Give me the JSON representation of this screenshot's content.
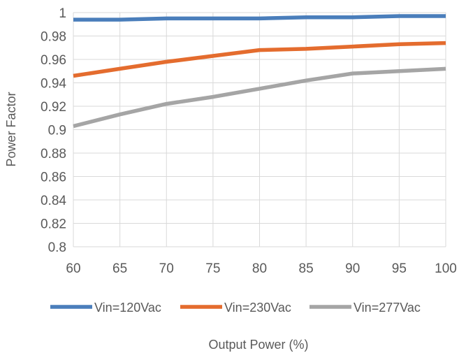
{
  "chart_data": {
    "type": "line",
    "xlabel": "Output Power (%)",
    "ylabel": "Power Factor",
    "x": [
      60,
      65,
      70,
      75,
      80,
      85,
      90,
      95,
      100
    ],
    "xlim": [
      60,
      100
    ],
    "ylim": [
      0.8,
      1.0
    ],
    "x_ticks": [
      "60",
      "65",
      "70",
      "75",
      "80",
      "85",
      "90",
      "95",
      "100"
    ],
    "y_ticks": [
      "0.8",
      "0.82",
      "0.84",
      "0.86",
      "0.88",
      "0.9",
      "0.92",
      "0.94",
      "0.96",
      "0.98",
      "1"
    ],
    "grid": true,
    "legend_position": "bottom",
    "series": [
      {
        "name": "Vin=120Vac",
        "color": "#4a7ebb",
        "values": [
          0.994,
          0.994,
          0.995,
          0.995,
          0.995,
          0.996,
          0.996,
          0.997,
          0.997
        ]
      },
      {
        "name": "Vin=230Vac",
        "color": "#e46c2e",
        "values": [
          0.946,
          0.952,
          0.958,
          0.963,
          0.968,
          0.969,
          0.971,
          0.973,
          0.974
        ]
      },
      {
        "name": "Vin=277Vac",
        "color": "#a5a5a5",
        "values": [
          0.903,
          0.913,
          0.922,
          0.928,
          0.935,
          0.942,
          0.948,
          0.95,
          0.952
        ]
      }
    ]
  }
}
